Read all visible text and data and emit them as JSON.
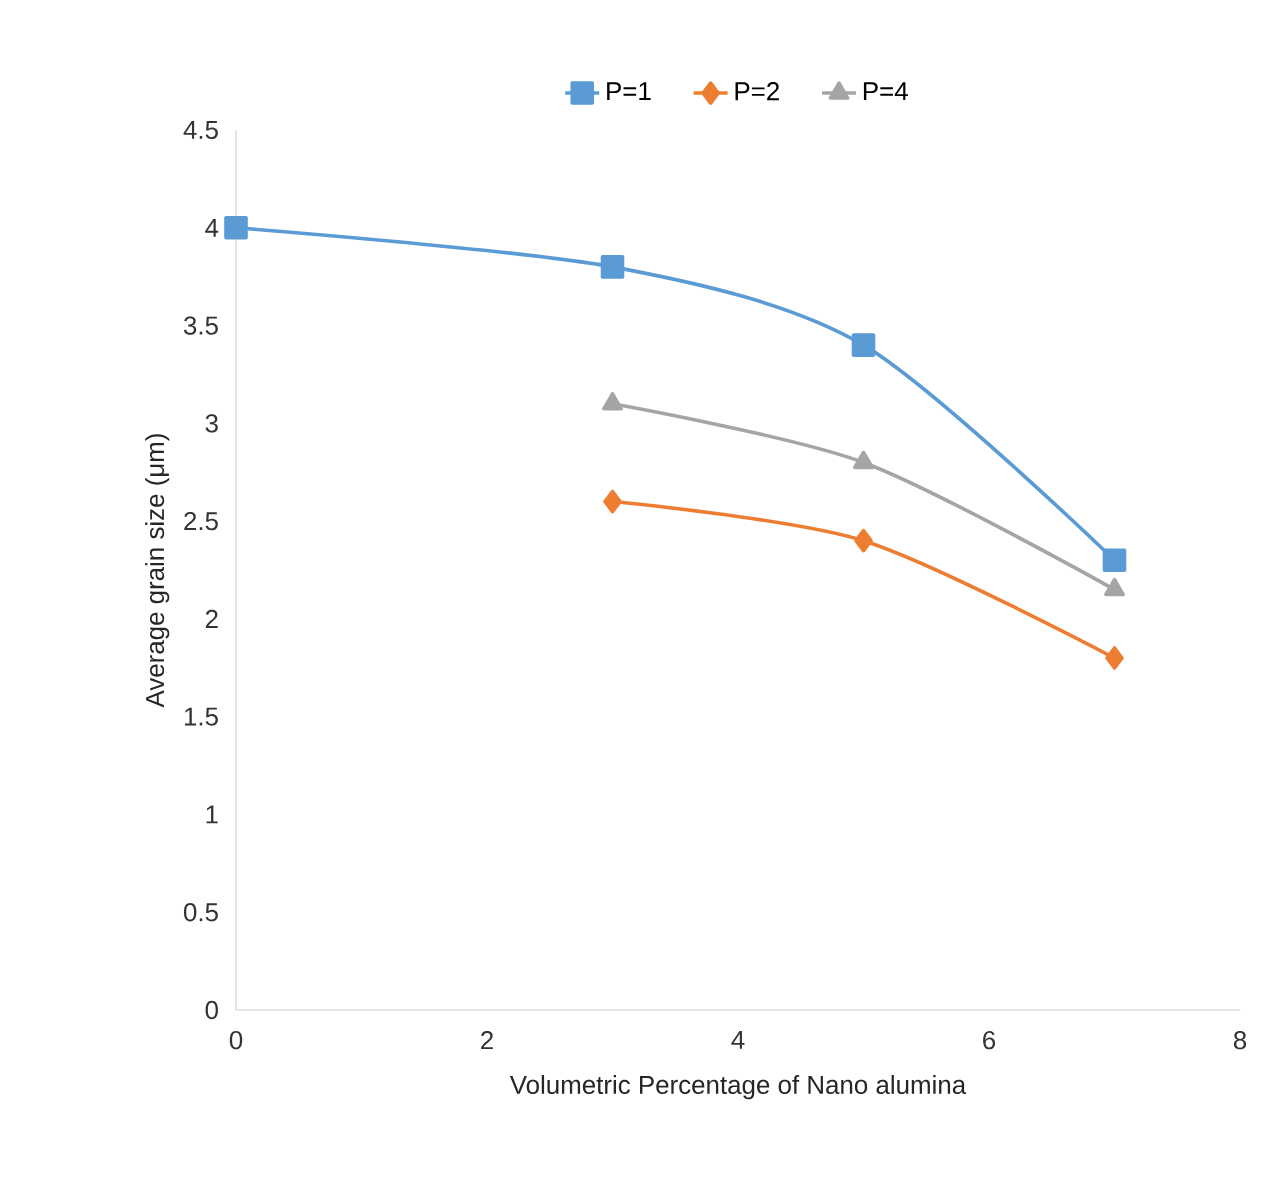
{
  "chart_data": {
    "type": "line",
    "xlabel": "Volumetric Percentage of Nano alumina",
    "ylabel": "Average grain size (μm)",
    "xlim": [
      0,
      8
    ],
    "xticks": [
      0,
      2,
      4,
      6,
      8
    ],
    "ylim": [
      0,
      4.5
    ],
    "yticks": [
      0,
      0.5,
      1,
      1.5,
      2,
      2.5,
      3,
      3.5,
      4,
      4.5
    ],
    "grid": false,
    "legend": "top",
    "series": [
      {
        "name": "P=1",
        "color": "#5b9bd5",
        "marker": "square",
        "x": [
          0,
          3,
          5,
          7
        ],
        "values": [
          4,
          3.8,
          3.4,
          2.3
        ]
      },
      {
        "name": "P=2",
        "color": "#ed7d31",
        "marker": "diamond",
        "x": [
          3,
          5,
          7
        ],
        "values": [
          2.6,
          2.4,
          1.8
        ]
      },
      {
        "name": "P=4",
        "color": "#a5a5a5",
        "marker": "triangle",
        "x": [
          3,
          5,
          7
        ],
        "values": [
          3.1,
          2.8,
          2.15
        ]
      }
    ]
  }
}
